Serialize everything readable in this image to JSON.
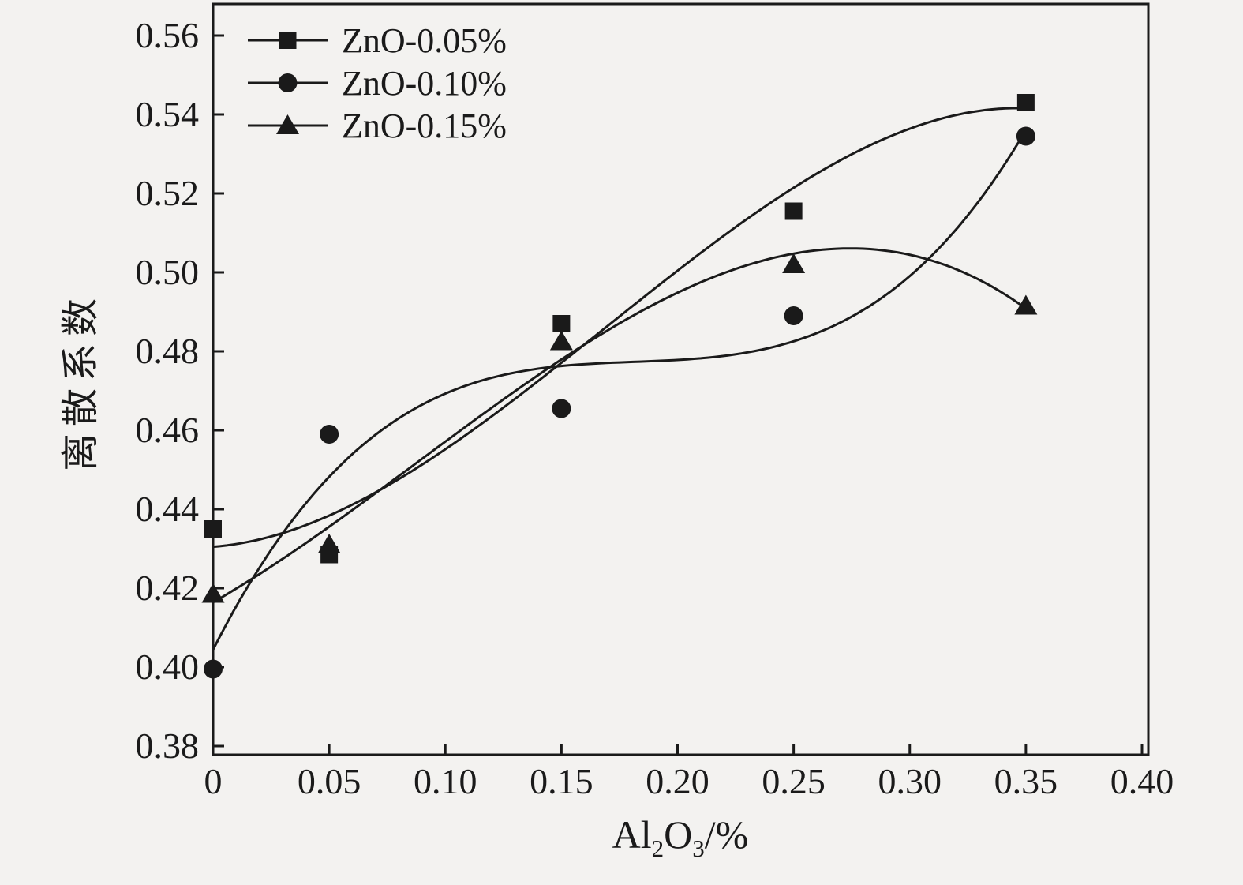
{
  "figure": {
    "background": "#f3f2f0",
    "ink": "#1a1a1a"
  },
  "chart_data": {
    "type": "line",
    "title": "",
    "xlabel": {
      "base1": "Al",
      "sub1": "2",
      "base2": "O",
      "sub2": "3",
      "suffix": "/%"
    },
    "ylabel": "离散系数",
    "xlim": [
      0,
      0.4
    ],
    "ylim": [
      0.38,
      0.56
    ],
    "x_ticks": [
      "0",
      "0.05",
      "0.10",
      "0.15",
      "0.20",
      "0.25",
      "0.30",
      "0.35",
      "0.40"
    ],
    "y_ticks": [
      "0.38",
      "0.40",
      "0.42",
      "0.44",
      "0.46",
      "0.48",
      "0.50",
      "0.52",
      "0.54",
      "0.56"
    ],
    "x": [
      0,
      0.05,
      0.15,
      0.25,
      0.35
    ],
    "series": [
      {
        "name": "ZnO-0.05%",
        "marker": "square",
        "values": [
          0.435,
          0.4285,
          0.487,
          0.5155,
          0.543
        ]
      },
      {
        "name": "ZnO-0.10%",
        "marker": "circle",
        "values": [
          0.3995,
          0.459,
          0.4655,
          0.489,
          0.5345
        ]
      },
      {
        "name": "ZnO-0.15%",
        "marker": "triangle",
        "values": [
          0.4185,
          0.431,
          0.4825,
          0.502,
          0.4915
        ]
      }
    ],
    "legend_position": "top-left",
    "grid": false,
    "curve_fit": "cubic"
  }
}
